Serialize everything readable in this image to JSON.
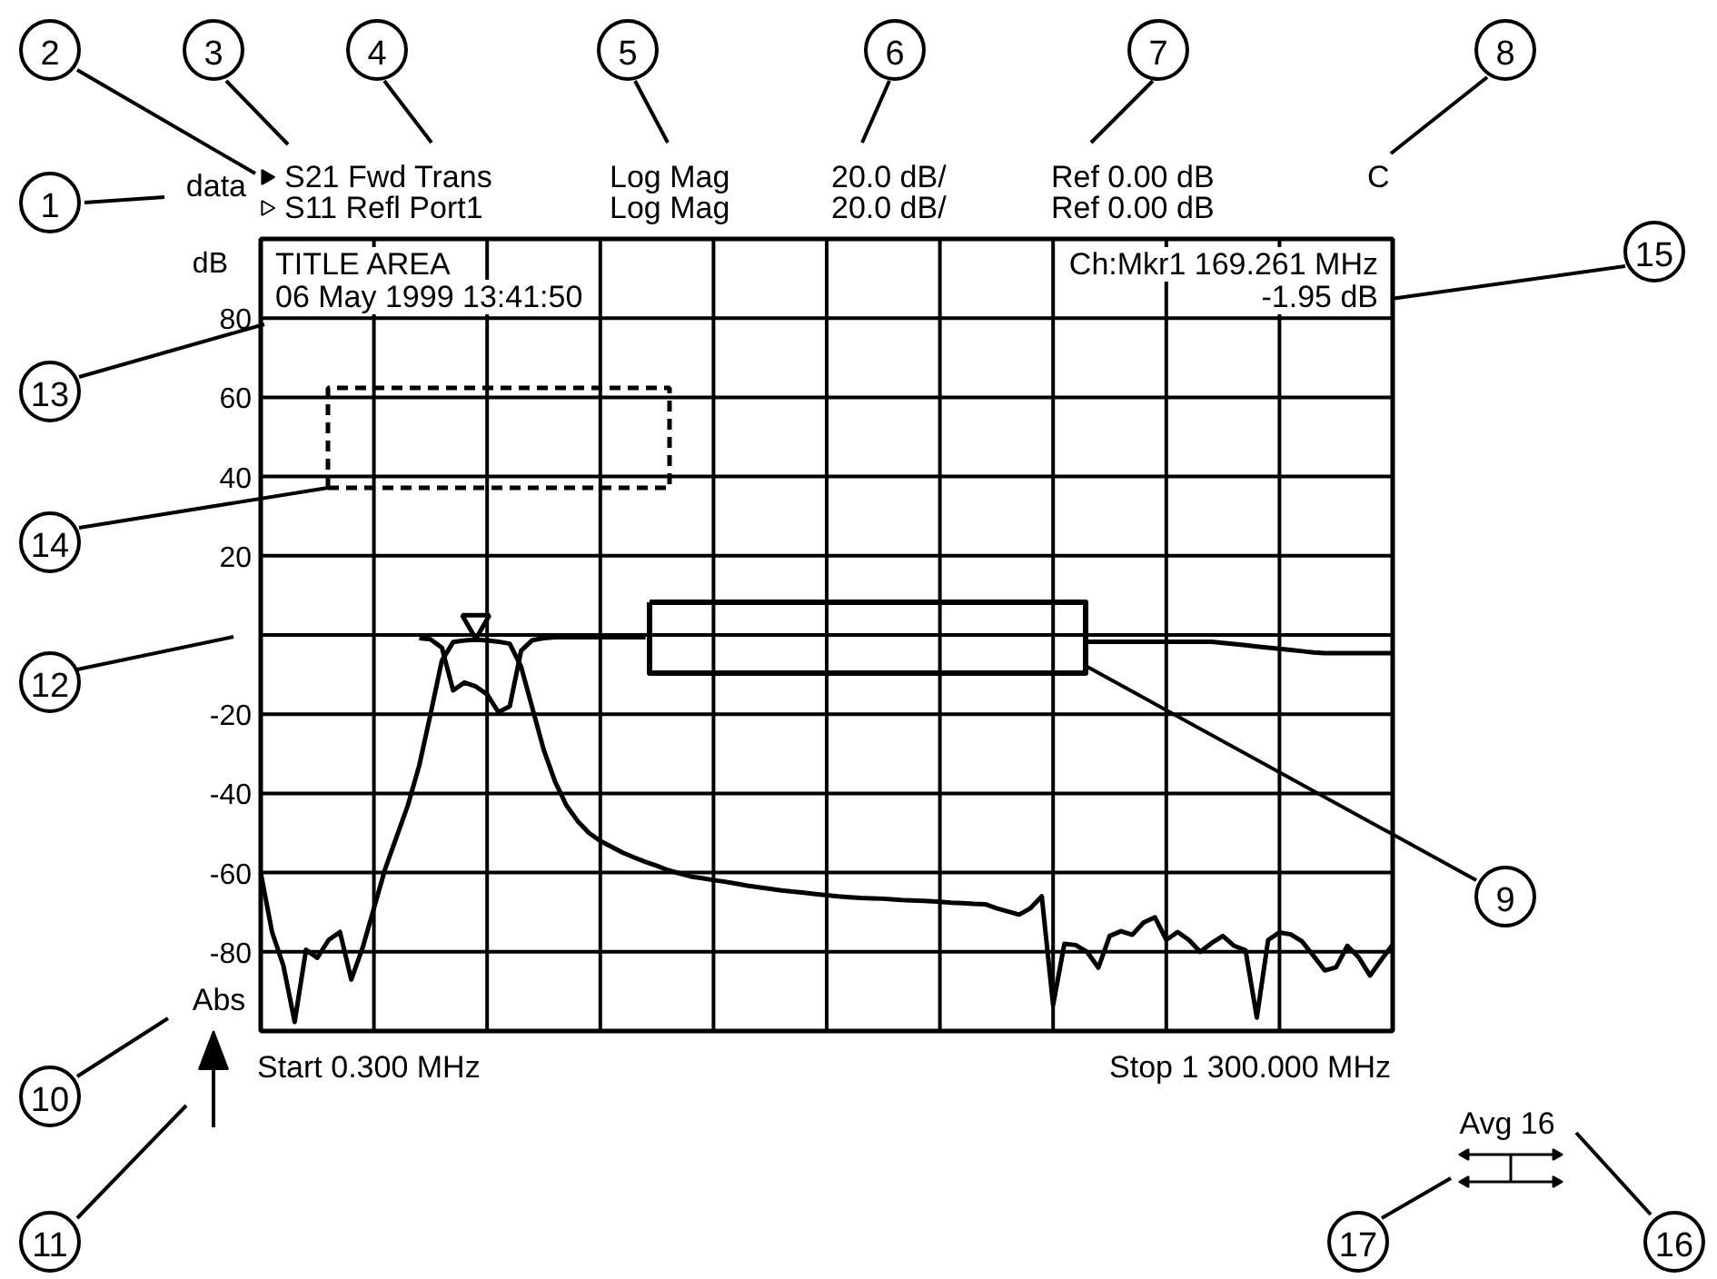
{
  "chart_data": {
    "type": "line",
    "title": "TITLE AREA",
    "subtitle": "06 May 1999 13:41:50",
    "ylabel": "dB",
    "categories": [
      null,
      null,
      null,
      null,
      null,
      null,
      null,
      null,
      null,
      null,
      null,
      null,
      null,
      null,
      null,
      null,
      null,
      null,
      null,
      null,
      null,
      null,
      null,
      null,
      null,
      null,
      null,
      null,
      null,
      null,
      null,
      null,
      null,
      null,
      null,
      null,
      null,
      null,
      null,
      null,
      null,
      null,
      null,
      null,
      null,
      null,
      null,
      null,
      null,
      null,
      null,
      null,
      null,
      null,
      null,
      null,
      null,
      null,
      null,
      null,
      null,
      null,
      null,
      null,
      null,
      null,
      null,
      null,
      null,
      null,
      null,
      null,
      null,
      null,
      null,
      null,
      null,
      null,
      null,
      null,
      null,
      null,
      null,
      null,
      null,
      null,
      null,
      null,
      null,
      null,
      null,
      null,
      null,
      null,
      null,
      null,
      null,
      null,
      null,
      null,
      null
    ],
    "ylim": [
      -100,
      100
    ],
    "yticks": [
      {
        "value": -100,
        "label": null
      },
      -80,
      -60,
      -40,
      -20,
      {
        "value": 0,
        "label": null
      },
      20,
      40,
      60,
      80,
      {
        "value": 100,
        "label": null
      }
    ],
    "grid": true,
    "legend": "top",
    "line_style": "solid",
    "series": [
      {
        "name": "S21 Fwd Trans",
        "color": "#000000",
        "values": [
          -60,
          -75,
          -83.5,
          -97.7,
          -79.5,
          -81.5,
          -77,
          -75,
          -87,
          -79,
          -69,
          -59,
          -51,
          -43,
          -33,
          -20,
          -6.5,
          -1.8,
          -1.4,
          -1.2,
          -1.4,
          -1.7,
          -2.2,
          -8,
          -18.5,
          -29,
          -37,
          -43,
          -47,
          -50,
          -52,
          -53.5,
          -55,
          -56.2,
          -57.3,
          -58.3,
          -59.4,
          -60.2,
          -61,
          -61.4,
          -61.9,
          -62.3,
          -62.8,
          -63.3,
          -63.7,
          -64.1,
          -64.5,
          -64.8,
          -65.1,
          -65.4,
          -65.7,
          -66,
          -66.2,
          -66.4,
          -66.5,
          -66.6,
          -66.8,
          -67,
          -67.1,
          -67.2,
          -67.4,
          -67.6,
          -67.7,
          -67.9,
          -68,
          -69,
          -69.8,
          -70.6,
          -69,
          -66,
          -93.4,
          -78,
          -78.3,
          -80,
          -84,
          -76,
          -74.8,
          -75.7,
          -72.6,
          -71.3,
          -77,
          -75,
          -77,
          -80,
          -77.8,
          -76,
          -78.5,
          -79.6,
          -96.6,
          -77,
          -75.1,
          -75.6,
          -77.4,
          -81,
          -84.7,
          -83.9,
          -78.5,
          -81.4,
          -86,
          -82,
          -78.2
        ]
      },
      {
        "name": "S11 Refl Port1",
        "color": "#000000",
        "values": [
          null,
          null,
          null,
          null,
          null,
          null,
          null,
          null,
          null,
          null,
          null,
          null,
          null,
          null,
          -0.8,
          -1.1,
          -3.2,
          -14,
          -12,
          -13,
          -15,
          -19.5,
          -18,
          -4,
          -1.3,
          -0.8,
          -0.6,
          -0.6,
          -0.6,
          -0.6,
          -0.6,
          -0.6,
          -0.6,
          -0.6,
          -0.6,
          null,
          null,
          null,
          null,
          null,
          null,
          null,
          null,
          null,
          null,
          null,
          null,
          null,
          null,
          null,
          null,
          null,
          null,
          null,
          null,
          null,
          null,
          null,
          null,
          null,
          null,
          null,
          null,
          null,
          null,
          null,
          null,
          null,
          null,
          null,
          null,
          null,
          null,
          -1.7,
          -1.7,
          -1.7,
          -1.7,
          -1.7,
          -1.7,
          -1.7,
          -1.7,
          -1.7,
          -1.7,
          -1.7,
          -1.7,
          -2,
          -2.3,
          -2.6,
          -2.9,
          -3.2,
          -3.5,
          -3.8,
          -4.1,
          -4.4,
          -4.6,
          -4.6,
          -4.6,
          -4.6,
          -4.6,
          -4.6,
          -4.6
        ]
      },
      {
        "type": "scatter",
        "marker": "triangle",
        "color": "#000000",
        "values": [
          null,
          null,
          null,
          null,
          null,
          null,
          null,
          null,
          null,
          null,
          null,
          null,
          null,
          null,
          null,
          null,
          null,
          null,
          null,
          3,
          null,
          null,
          null,
          null,
          null,
          null,
          null,
          null,
          null,
          null,
          null,
          null,
          null,
          null,
          null,
          null,
          null,
          null,
          null,
          null,
          null,
          null,
          null,
          null,
          null,
          null,
          null,
          null,
          null,
          null,
          null,
          null,
          null,
          null,
          null,
          null,
          null,
          null,
          null,
          null,
          null,
          null,
          null,
          null,
          null,
          null,
          null,
          null,
          null,
          null,
          null,
          null,
          null,
          null,
          null,
          null,
          null,
          null,
          null,
          null,
          null,
          null,
          null,
          null,
          null,
          null,
          null,
          null,
          null,
          null,
          null,
          null,
          null,
          null,
          null,
          null,
          null,
          null,
          null,
          null,
          null
        ]
      }
    ],
    "annotations": [
      "data",
      "Log Mag",
      "20.0 dB/",
      "Ref 0.00 dB",
      "C",
      "Log Mag",
      "20.0 dB/",
      "Ref 0.00 dB",
      "Ch:Mkr1 169.261 MHz",
      "-1.95 dB",
      "Abs",
      "Start 0.300 MHz",
      "Stop 1 300.000 MHz",
      "Avg 16",
      "1",
      "2",
      "3",
      "4",
      "5",
      "6",
      "7",
      "8",
      "9",
      "10",
      "11",
      "12",
      "13",
      "14",
      "15",
      "16",
      "17"
    ]
  }
}
